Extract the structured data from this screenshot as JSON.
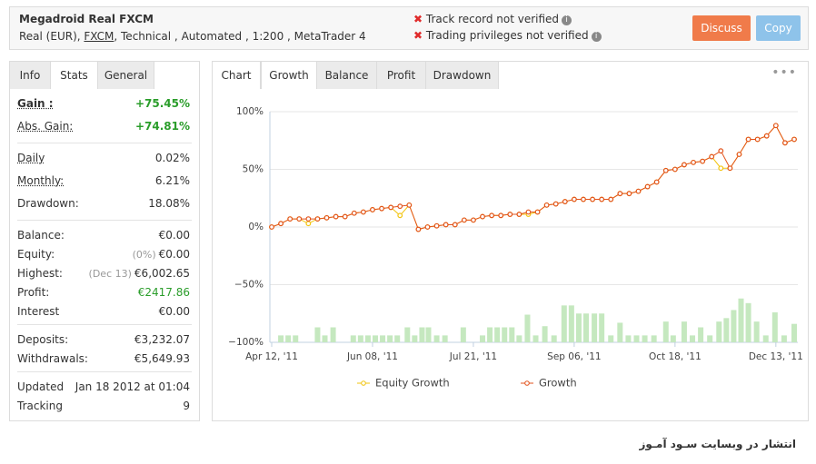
{
  "header": {
    "title": "Megadroid Real FXCM",
    "details": [
      "Real (EUR),",
      "FXCM",
      ", Technical , Automated , 1:200 , MetaTrader 4"
    ],
    "verifications": [
      "Track record not verified",
      "Trading privileges not verified"
    ],
    "buttons": [
      "Discuss",
      "Copy"
    ]
  },
  "stats": {
    "tabs": [
      "Info",
      "Stats",
      "General"
    ],
    "groups": [
      [
        {
          "label": "Gain :",
          "value": "+75.45%"
        },
        {
          "label": "Abs. Gain:",
          "value": "+74.81%"
        }
      ],
      [
        {
          "label": "Daily",
          "value": "0.02%"
        },
        {
          "label": "Monthly:",
          "value": "6.21%"
        },
        {
          "label": "Drawdown:",
          "value": "18.08%"
        }
      ],
      [
        {
          "label": "Balance:",
          "value": "€0.00"
        },
        {
          "label": "Equity:",
          "note": "(0%)",
          "value": "€0.00"
        },
        {
          "label": "Highest:",
          "note": "(Dec 13)",
          "value": "€6,002.65"
        },
        {
          "label": "Profit:",
          "value": "€2417.86"
        },
        {
          "label": "Interest",
          "value": "€0.00"
        }
      ],
      [
        {
          "label": "Deposits:",
          "value": "€3,232.07"
        },
        {
          "label": "Withdrawals:",
          "value": "€5,649.93"
        }
      ],
      [
        {
          "label": "Updated",
          "value": "Jan 18 2012 at 01:04"
        },
        {
          "label": "Tracking",
          "value": "9"
        }
      ]
    ]
  },
  "chart_tabs": [
    "Chart",
    "Growth",
    "Balance",
    "Profit",
    "Drawdown"
  ],
  "chart_data": {
    "type": "line",
    "x": [
      0,
      1,
      2,
      3,
      4,
      5,
      6,
      7,
      8,
      9,
      10,
      11,
      12,
      13,
      14,
      15,
      16,
      17,
      18,
      19,
      20,
      21,
      22,
      23,
      24,
      25,
      26,
      27,
      28,
      29,
      30,
      31,
      32,
      33,
      34,
      35,
      36,
      37,
      38,
      39,
      40,
      41,
      42,
      43,
      44,
      45,
      46,
      47,
      48,
      49,
      50,
      51,
      52,
      53,
      54,
      55,
      56,
      57
    ],
    "series": [
      {
        "name": "Equity Growth",
        "color": "#f2c40f",
        "values": [
          0,
          3,
          7,
          7,
          3,
          7,
          8,
          9,
          9,
          12,
          13,
          15,
          16,
          17,
          10,
          19,
          -2,
          0,
          1,
          2,
          2,
          6,
          6,
          9,
          10,
          10,
          11,
          11,
          11,
          13,
          19,
          20,
          22,
          24,
          24,
          24,
          24,
          24,
          29,
          29,
          31,
          35,
          39,
          49,
          50,
          54,
          56,
          57,
          61,
          51,
          51,
          63,
          76,
          76,
          79,
          88,
          73,
          76
        ]
      },
      {
        "name": "Growth",
        "color": "#e2531c",
        "values": [
          0,
          3,
          7,
          7,
          7,
          7,
          8,
          9,
          9,
          12,
          13,
          15,
          16,
          17,
          18,
          19,
          -2,
          0,
          1,
          2,
          2,
          6,
          6,
          9,
          10,
          10,
          11,
          11,
          13,
          13,
          19,
          20,
          22,
          24,
          24,
          24,
          24,
          24,
          29,
          29,
          31,
          35,
          39,
          49,
          50,
          54,
          56,
          57,
          61,
          66,
          51,
          63,
          76,
          76,
          79,
          88,
          73,
          76
        ]
      },
      {
        "type": "bar",
        "color": "#c5e8bf",
        "x": [
          1.0,
          1.8,
          2.6,
          5.0,
          5.8,
          6.7,
          8.9,
          9.7,
          10.5,
          11.3,
          12.1,
          12.9,
          13.7,
          14.8,
          15.6,
          16.4,
          17.1,
          18.0,
          18.9,
          20.9,
          23.0,
          23.8,
          24.6,
          25.4,
          26.2,
          27.0,
          27.9,
          28.8,
          29.8,
          30.8,
          31.9,
          32.7,
          33.5,
          34.3,
          35.2,
          36.0,
          37.0,
          38.0,
          38.9,
          39.8,
          40.7,
          41.7,
          43.0,
          43.8,
          45.0,
          45.9,
          46.8,
          47.8,
          48.8,
          49.6,
          50.4,
          51.2,
          52.0,
          52.9,
          53.9,
          54.9,
          55.9,
          57.0
        ],
        "values": [
          -94,
          -94,
          -94,
          -87,
          -94,
          -87,
          -94,
          -94,
          -94,
          -94,
          -94,
          -94,
          -94,
          -87,
          -94,
          -87,
          -87,
          -94,
          -94,
          -87,
          -94,
          -87,
          -87,
          -87,
          -87,
          -94,
          -76,
          -94,
          -86,
          -94,
          -68,
          -68,
          -75,
          -75,
          -75,
          -75,
          -94,
          -83,
          -94,
          -94,
          -94,
          -94,
          -82,
          -94,
          -82,
          -94,
          -87,
          -94,
          -82,
          -79,
          -72,
          -62,
          -66,
          -82,
          -94,
          -74,
          -94,
          -84
        ]
      }
    ],
    "xlim": [
      0,
      57
    ],
    "xticks": [
      {
        "value": 0,
        "label": "Apr 12, '11"
      },
      {
        "value": 11,
        "label": "Jun 08, '11"
      },
      {
        "value": 22,
        "label": "Jul 21, '11"
      },
      {
        "value": 33,
        "label": "Sep 06, '11"
      },
      {
        "value": 44,
        "label": "Oct 18, '11"
      },
      {
        "value": 55,
        "label": "Dec 13, '11"
      }
    ],
    "ylim": [
      -100,
      100
    ],
    "yticks": [
      {
        "value": 100,
        "label": "100%"
      },
      {
        "value": 50,
        "label": "50%"
      },
      {
        "value": 0,
        "label": "0%"
      },
      {
        "value": -50,
        "label": "−50%"
      },
      {
        "value": -100,
        "label": "−100%"
      }
    ],
    "grid": true
  },
  "footer": "انتشار در وبسایت سـود آمـوز"
}
